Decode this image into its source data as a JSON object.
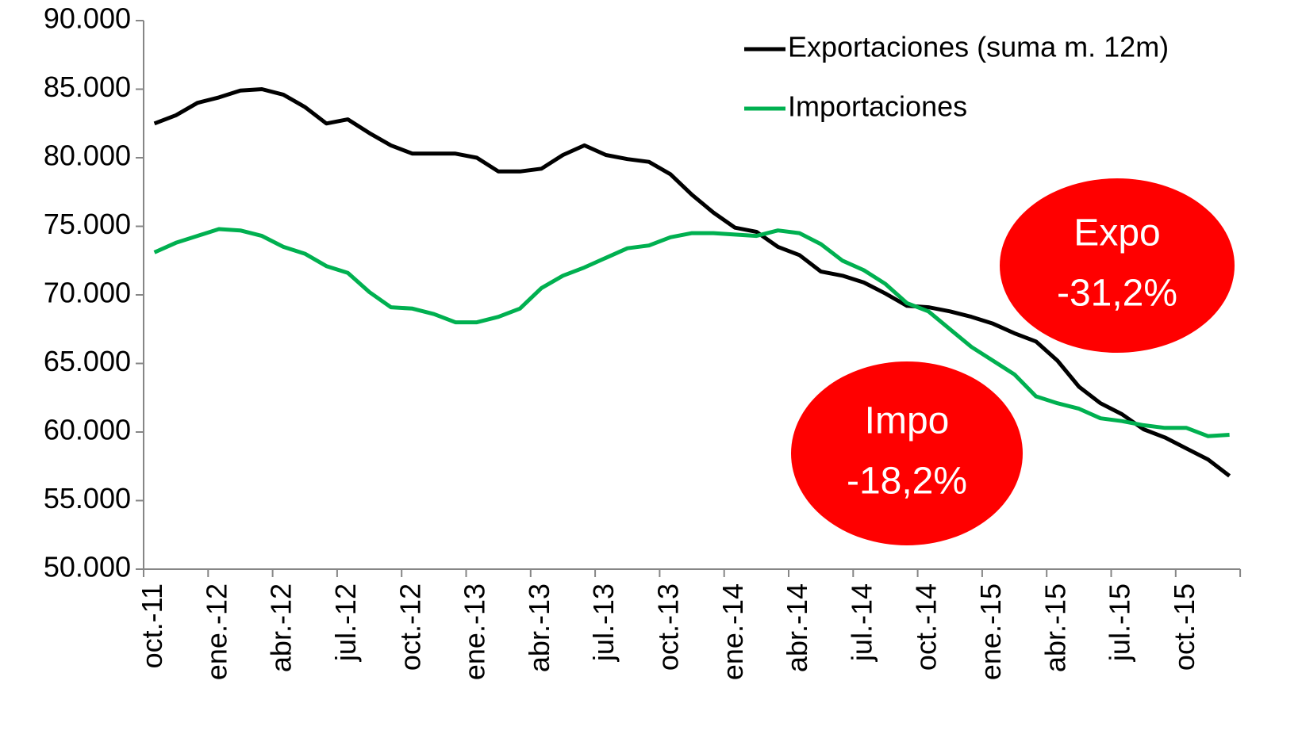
{
  "chart_data": {
    "type": "line",
    "categories": [
      "oct.-11",
      null,
      null,
      "ene.-12",
      null,
      null,
      "abr.-12",
      null,
      null,
      "jul.-12",
      null,
      null,
      "oct.-12",
      null,
      null,
      "ene.-13",
      null,
      null,
      "abr.-13",
      null,
      null,
      "jul.-13",
      null,
      null,
      "oct.-13",
      null,
      null,
      "ene.-14",
      null,
      null,
      "abr.-14",
      null,
      null,
      "jul.-14",
      null,
      null,
      "oct.-14",
      null,
      null,
      "ene.-15",
      null,
      null,
      "abr.-15",
      null,
      null,
      "jul.-15",
      null,
      null,
      "oct.-15",
      null,
      null
    ],
    "series": [
      {
        "name": "Exportaciones (suma m. 12m)",
        "color": "#000000",
        "values": [
          82500,
          83100,
          84000,
          84400,
          84900,
          85000,
          84600,
          83700,
          82500,
          82800,
          81800,
          80900,
          80300,
          80300,
          80300,
          80000,
          79000,
          79000,
          79200,
          80200,
          80900,
          80200,
          79900,
          79700,
          78800,
          77300,
          76000,
          74900,
          74600,
          73500,
          72900,
          71700,
          71400,
          70900,
          70100,
          69200,
          69100,
          68800,
          68400,
          67900,
          67200,
          66600,
          65200,
          63300,
          62100,
          61300,
          60200,
          59600,
          58800,
          58000,
          56800
        ]
      },
      {
        "name": "Importaciones",
        "color": "#00b050",
        "values": [
          73100,
          73800,
          74300,
          74800,
          74700,
          74300,
          73500,
          73000,
          72100,
          71600,
          70200,
          69100,
          69000,
          68600,
          68000,
          68000,
          68400,
          69000,
          70500,
          71400,
          72000,
          72700,
          73400,
          73600,
          74200,
          74500,
          74500,
          74400,
          74300,
          74700,
          74500,
          73700,
          72500,
          71800,
          70800,
          69400,
          68800,
          67500,
          66200,
          65200,
          64200,
          62600,
          62100,
          61700,
          61000,
          60800,
          60500,
          60300,
          60300,
          59700,
          59800
        ]
      }
    ],
    "ylim": [
      50000,
      90000
    ],
    "yticks": [
      {
        "value": 50000,
        "label": "50.000"
      },
      {
        "value": 55000,
        "label": "55.000"
      },
      {
        "value": 60000,
        "label": "60.000"
      },
      {
        "value": 65000,
        "label": "65.000"
      },
      {
        "value": 70000,
        "label": "70.000"
      },
      {
        "value": 75000,
        "label": "75.000"
      },
      {
        "value": 80000,
        "label": "80.000"
      },
      {
        "value": 85000,
        "label": "85.000"
      },
      {
        "value": 90000,
        "label": "90.000"
      }
    ],
    "legend": "top-right",
    "annotations": [
      {
        "text": [
          "Expo",
          "-31,2%"
        ],
        "color": "#ff0000"
      },
      {
        "text": [
          "Impo",
          "-18,2%"
        ],
        "color": "#ff0000"
      }
    ]
  }
}
